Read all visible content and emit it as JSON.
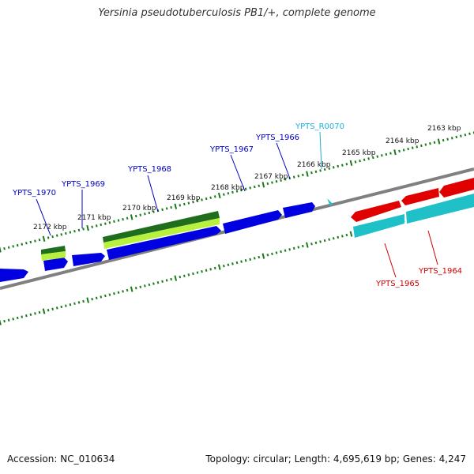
{
  "title": "Yersinia pseudotuberculosis PB1/+, complete genome",
  "footer": {
    "accession": "Accession: NC_010634",
    "topology": "Topology: circular; Length: 4,695,619 bp; Genes: 4,247"
  },
  "colors": {
    "backbone": "#808080",
    "tick": "#1a7a1a",
    "forward_cds": "#0000e0",
    "reverse_cds": "#e00000",
    "reverse_rna": "#20c0c8",
    "gene_dark": "#1e6e1e",
    "gene_light": "#b8f040",
    "label_blue": "#0000c0",
    "label_red": "#d00000",
    "label_cyan": "#20b0d8"
  },
  "kbp_labels": [
    "2163 kbp",
    "2164 kbp",
    "2165 kbp",
    "2166 kbp",
    "2167 kbp",
    "2168 kbp",
    "2169 kbp",
    "2170 kbp",
    "2171 kbp",
    "2172 kbp"
  ],
  "gene_labels": [
    "YPTS_1970",
    "YPTS_1969",
    "YPTS_1968",
    "YPTS_1967",
    "YPTS_1966",
    "YPTS_R0070",
    "YPTS_1965",
    "YPTS_1964"
  ]
}
